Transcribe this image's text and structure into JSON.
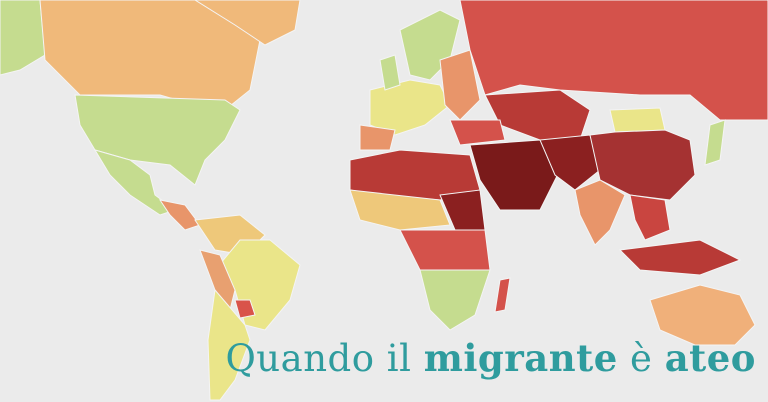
{
  "title": {
    "parts": [
      "Quando il",
      "migrante",
      "è",
      "ateo"
    ]
  }
}
